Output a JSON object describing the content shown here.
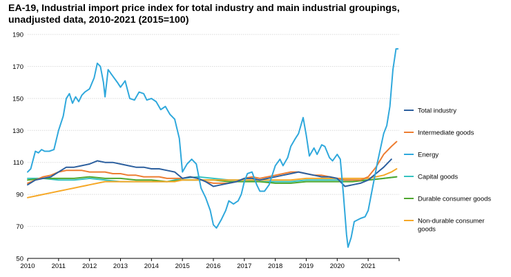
{
  "chart_data": {
    "type": "line",
    "title_lines": [
      "EA-19, Industrial import price index for total industry and main industrial groupings,",
      "unadjusted data, 2010-2021 (2015=100)"
    ],
    "xlabel": "",
    "ylabel": "",
    "xlim": [
      2010,
      2022
    ],
    "ylim": [
      50,
      190
    ],
    "y_ticks": [
      50,
      70,
      90,
      110,
      130,
      150,
      170,
      190
    ],
    "x_ticks": [
      "2010",
      "2011",
      "2012",
      "2013",
      "2014",
      "2015",
      "2016",
      "2017",
      "2018",
      "2019",
      "2020",
      "2021"
    ],
    "grid": "horizontal",
    "legend_position": "right",
    "series": [
      {
        "name": "Total industry",
        "color": "#2c5f9e",
        "points": [
          [
            2010.0,
            96
          ],
          [
            2010.25,
            99
          ],
          [
            2010.5,
            100
          ],
          [
            2010.75,
            101
          ],
          [
            2011.0,
            104
          ],
          [
            2011.25,
            107
          ],
          [
            2011.5,
            107
          ],
          [
            2011.75,
            108
          ],
          [
            2012.0,
            109
          ],
          [
            2012.25,
            111
          ],
          [
            2012.5,
            110
          ],
          [
            2012.75,
            110
          ],
          [
            2013.0,
            109
          ],
          [
            2013.25,
            108
          ],
          [
            2013.5,
            107
          ],
          [
            2013.75,
            107
          ],
          [
            2014.0,
            106
          ],
          [
            2014.25,
            106
          ],
          [
            2014.5,
            105
          ],
          [
            2014.75,
            104
          ],
          [
            2015.0,
            100
          ],
          [
            2015.25,
            101
          ],
          [
            2015.5,
            100
          ],
          [
            2015.75,
            98
          ],
          [
            2016.0,
            95
          ],
          [
            2016.25,
            96
          ],
          [
            2016.5,
            97
          ],
          [
            2016.75,
            98
          ],
          [
            2017.0,
            100
          ],
          [
            2017.25,
            100
          ],
          [
            2017.5,
            99
          ],
          [
            2017.75,
            100
          ],
          [
            2018.0,
            101
          ],
          [
            2018.25,
            102
          ],
          [
            2018.5,
            103
          ],
          [
            2018.75,
            104
          ],
          [
            2019.0,
            103
          ],
          [
            2019.25,
            102
          ],
          [
            2019.5,
            101
          ],
          [
            2019.75,
            101
          ],
          [
            2020.0,
            100
          ],
          [
            2020.25,
            95
          ],
          [
            2020.5,
            96
          ],
          [
            2020.75,
            97
          ],
          [
            2021.0,
            99
          ],
          [
            2021.25,
            103
          ],
          [
            2021.5,
            107
          ],
          [
            2021.75,
            112
          ]
        ]
      },
      {
        "name": "Intermediate goods",
        "color": "#ed7d31",
        "points": [
          [
            2010.0,
            97
          ],
          [
            2010.25,
            99
          ],
          [
            2010.5,
            101
          ],
          [
            2010.75,
            102
          ],
          [
            2011.0,
            104
          ],
          [
            2011.25,
            105
          ],
          [
            2011.5,
            105
          ],
          [
            2011.75,
            105
          ],
          [
            2012.0,
            104
          ],
          [
            2012.25,
            104
          ],
          [
            2012.5,
            104
          ],
          [
            2012.75,
            103
          ],
          [
            2013.0,
            103
          ],
          [
            2013.25,
            102
          ],
          [
            2013.5,
            102
          ],
          [
            2013.75,
            101
          ],
          [
            2014.0,
            101
          ],
          [
            2014.25,
            101
          ],
          [
            2014.5,
            100
          ],
          [
            2014.75,
            100
          ],
          [
            2015.0,
            100
          ],
          [
            2015.25,
            101
          ],
          [
            2015.5,
            100
          ],
          [
            2015.75,
            98
          ],
          [
            2016.0,
            97
          ],
          [
            2016.25,
            97
          ],
          [
            2016.5,
            97
          ],
          [
            2016.75,
            98
          ],
          [
            2017.0,
            100
          ],
          [
            2017.25,
            101
          ],
          [
            2017.5,
            100
          ],
          [
            2017.75,
            101
          ],
          [
            2018.0,
            102
          ],
          [
            2018.25,
            103
          ],
          [
            2018.5,
            104
          ],
          [
            2018.75,
            104
          ],
          [
            2019.0,
            103
          ],
          [
            2019.25,
            102
          ],
          [
            2019.5,
            102
          ],
          [
            2019.75,
            101
          ],
          [
            2020.0,
            100
          ],
          [
            2020.25,
            99
          ],
          [
            2020.5,
            99
          ],
          [
            2020.75,
            99
          ],
          [
            2021.0,
            101
          ],
          [
            2021.25,
            107
          ],
          [
            2021.5,
            115
          ],
          [
            2021.75,
            120
          ],
          [
            2021.92,
            123
          ]
        ]
      },
      {
        "name": "Energy",
        "color": "#2fa8dc",
        "points": [
          [
            2010.0,
            104
          ],
          [
            2010.1,
            106
          ],
          [
            2010.25,
            117
          ],
          [
            2010.35,
            116
          ],
          [
            2010.45,
            118
          ],
          [
            2010.55,
            117
          ],
          [
            2010.7,
            117
          ],
          [
            2010.85,
            118
          ],
          [
            2011.0,
            130
          ],
          [
            2011.15,
            139
          ],
          [
            2011.25,
            150
          ],
          [
            2011.35,
            153
          ],
          [
            2011.45,
            147
          ],
          [
            2011.55,
            151
          ],
          [
            2011.65,
            148
          ],
          [
            2011.75,
            152
          ],
          [
            2011.85,
            154
          ],
          [
            2012.0,
            156
          ],
          [
            2012.15,
            163
          ],
          [
            2012.25,
            172
          ],
          [
            2012.35,
            170
          ],
          [
            2012.45,
            160
          ],
          [
            2012.5,
            151
          ],
          [
            2012.6,
            168
          ],
          [
            2012.75,
            164
          ],
          [
            2012.9,
            160
          ],
          [
            2013.0,
            157
          ],
          [
            2013.15,
            161
          ],
          [
            2013.3,
            150
          ],
          [
            2013.45,
            149
          ],
          [
            2013.6,
            154
          ],
          [
            2013.75,
            153
          ],
          [
            2013.85,
            149
          ],
          [
            2014.0,
            150
          ],
          [
            2014.15,
            148
          ],
          [
            2014.3,
            143
          ],
          [
            2014.45,
            145
          ],
          [
            2014.6,
            140
          ],
          [
            2014.75,
            137
          ],
          [
            2014.9,
            125
          ],
          [
            2015.0,
            104
          ],
          [
            2015.15,
            109
          ],
          [
            2015.3,
            112
          ],
          [
            2015.45,
            109
          ],
          [
            2015.6,
            94
          ],
          [
            2015.75,
            88
          ],
          [
            2015.9,
            80
          ],
          [
            2016.0,
            71
          ],
          [
            2016.1,
            69
          ],
          [
            2016.25,
            74
          ],
          [
            2016.4,
            80
          ],
          [
            2016.5,
            86
          ],
          [
            2016.65,
            84
          ],
          [
            2016.8,
            86
          ],
          [
            2016.9,
            90
          ],
          [
            2017.0,
            98
          ],
          [
            2017.1,
            103
          ],
          [
            2017.25,
            104
          ],
          [
            2017.4,
            96
          ],
          [
            2017.5,
            92
          ],
          [
            2017.65,
            92
          ],
          [
            2017.8,
            96
          ],
          [
            2018.0,
            108
          ],
          [
            2018.15,
            112
          ],
          [
            2018.25,
            108
          ],
          [
            2018.4,
            113
          ],
          [
            2018.5,
            120
          ],
          [
            2018.65,
            125
          ],
          [
            2018.75,
            128
          ],
          [
            2018.9,
            138
          ],
          [
            2019.0,
            127
          ],
          [
            2019.1,
            114
          ],
          [
            2019.25,
            119
          ],
          [
            2019.35,
            115
          ],
          [
            2019.5,
            121
          ],
          [
            2019.6,
            120
          ],
          [
            2019.75,
            113
          ],
          [
            2019.85,
            111
          ],
          [
            2020.0,
            115
          ],
          [
            2020.1,
            112
          ],
          [
            2020.2,
            90
          ],
          [
            2020.3,
            65
          ],
          [
            2020.35,
            57
          ],
          [
            2020.45,
            63
          ],
          [
            2020.55,
            73
          ],
          [
            2020.75,
            75
          ],
          [
            2020.9,
            76
          ],
          [
            2021.0,
            80
          ],
          [
            2021.15,
            95
          ],
          [
            2021.3,
            110
          ],
          [
            2021.5,
            128
          ],
          [
            2021.6,
            133
          ],
          [
            2021.7,
            145
          ],
          [
            2021.8,
            168
          ],
          [
            2021.9,
            181
          ],
          [
            2021.96,
            181
          ]
        ]
      },
      {
        "name": "Capital goods",
        "color": "#35c2c0",
        "points": [
          [
            2010.0,
            100
          ],
          [
            2010.5,
            100
          ],
          [
            2011.0,
            99
          ],
          [
            2011.5,
            99
          ],
          [
            2012.0,
            100
          ],
          [
            2012.5,
            99
          ],
          [
            2013.0,
            98
          ],
          [
            2013.5,
            98
          ],
          [
            2014.0,
            98
          ],
          [
            2014.5,
            98
          ],
          [
            2015.0,
            100
          ],
          [
            2015.5,
            101
          ],
          [
            2016.0,
            100
          ],
          [
            2016.5,
            99
          ],
          [
            2017.0,
            99
          ],
          [
            2017.5,
            98
          ],
          [
            2018.0,
            98
          ],
          [
            2018.5,
            98
          ],
          [
            2019.0,
            99
          ],
          [
            2019.5,
            99
          ],
          [
            2020.0,
            99
          ],
          [
            2020.5,
            99
          ],
          [
            2021.0,
            99
          ],
          [
            2021.5,
            100
          ],
          [
            2021.92,
            101
          ]
        ]
      },
      {
        "name": "Durable consumer goods",
        "color": "#4ea72e",
        "points": [
          [
            2010.0,
            99
          ],
          [
            2010.5,
            100
          ],
          [
            2011.0,
            100
          ],
          [
            2011.5,
            100
          ],
          [
            2012.0,
            101
          ],
          [
            2012.5,
            100
          ],
          [
            2013.0,
            100
          ],
          [
            2013.5,
            99
          ],
          [
            2014.0,
            99
          ],
          [
            2014.5,
            98
          ],
          [
            2015.0,
            99
          ],
          [
            2015.5,
            99
          ],
          [
            2016.0,
            99
          ],
          [
            2016.5,
            98
          ],
          [
            2017.0,
            98
          ],
          [
            2017.5,
            98
          ],
          [
            2018.0,
            97
          ],
          [
            2018.5,
            97
          ],
          [
            2019.0,
            98
          ],
          [
            2019.5,
            98
          ],
          [
            2020.0,
            98
          ],
          [
            2020.5,
            98
          ],
          [
            2021.0,
            99
          ],
          [
            2021.5,
            100
          ],
          [
            2021.92,
            101
          ]
        ]
      },
      {
        "name": "Non-durable consumer goods",
        "color": "#f6a827",
        "points": [
          [
            2010.0,
            88
          ],
          [
            2010.25,
            89
          ],
          [
            2010.5,
            90
          ],
          [
            2010.75,
            91
          ],
          [
            2011.0,
            92
          ],
          [
            2011.25,
            93
          ],
          [
            2011.5,
            94
          ],
          [
            2011.75,
            95
          ],
          [
            2012.0,
            96
          ],
          [
            2012.25,
            97
          ],
          [
            2012.5,
            98
          ],
          [
            2012.75,
            98
          ],
          [
            2013.0,
            98
          ],
          [
            2013.25,
            98
          ],
          [
            2013.5,
            98
          ],
          [
            2013.75,
            98
          ],
          [
            2014.0,
            98
          ],
          [
            2014.25,
            98
          ],
          [
            2014.5,
            98
          ],
          [
            2014.75,
            98
          ],
          [
            2015.0,
            99
          ],
          [
            2015.5,
            99
          ],
          [
            2016.0,
            99
          ],
          [
            2016.5,
            99
          ],
          [
            2017.0,
            99
          ],
          [
            2017.5,
            99
          ],
          [
            2018.0,
            99
          ],
          [
            2018.5,
            99
          ],
          [
            2019.0,
            100
          ],
          [
            2019.5,
            100
          ],
          [
            2020.0,
            100
          ],
          [
            2020.5,
            100
          ],
          [
            2021.0,
            100
          ],
          [
            2021.25,
            101
          ],
          [
            2021.5,
            102
          ],
          [
            2021.75,
            104
          ],
          [
            2021.92,
            106
          ]
        ]
      }
    ],
    "legend": [
      {
        "lines": [
          "Total industry"
        ],
        "color": "#2c5f9e"
      },
      {
        "lines": [
          "Intermediate goods"
        ],
        "color": "#ed7d31"
      },
      {
        "lines": [
          "Energy"
        ],
        "color": "#2fa8dc"
      },
      {
        "lines": [
          "Capital goods"
        ],
        "color": "#35c2c0"
      },
      {
        "lines": [
          "Durable consumer goods"
        ],
        "color": "#4ea72e"
      },
      {
        "lines": [
          "Non-durable consumer",
          "goods"
        ],
        "color": "#f6a827"
      }
    ]
  }
}
